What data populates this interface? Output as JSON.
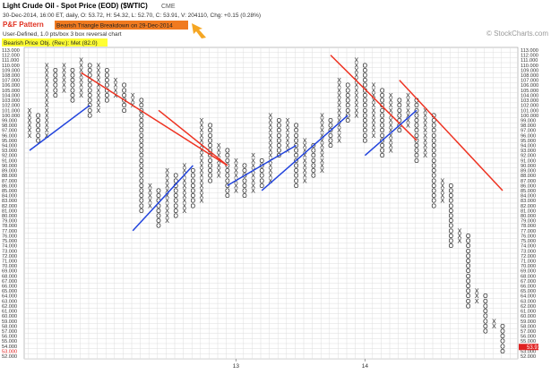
{
  "chart_data": {
    "type": "pnf",
    "title": "Light Crude Oil - Spot Price (EOD) ($WTIC)",
    "exchange": "CME",
    "subtitle": "30-Dec-2014, 16:00 ET, daily, O: 53.72, H: 54.32, L: 52.70, C: 53.91, V: 204110, Chg: +0.15 (0.28%)",
    "pattern_label": "P&F Pattern",
    "pattern": "Bearish Triangle Breakdown on 29-Dec-2014",
    "settings": "User-Defined, 1.0 pts/box 3 box reversal chart",
    "objective": "Bearish Price Obj. (Rev.): Met (82.0)",
    "watermark": "© StockCharts.com",
    "last_price": {
      "value": 53.91,
      "label": "53.91"
    },
    "ylim": [
      52,
      113
    ],
    "yticks": [
      {
        "value": 113,
        "label": "113.000"
      },
      {
        "value": 112,
        "label": "112.000"
      },
      {
        "value": 111,
        "label": "111.000"
      },
      {
        "value": 110,
        "label": "110.000"
      },
      {
        "value": 109,
        "label": "109.000"
      },
      {
        "value": 108,
        "label": "108.000"
      },
      {
        "value": 107,
        "label": "107.000"
      },
      {
        "value": 106,
        "label": "106.000"
      },
      {
        "value": 105,
        "label": "105.000"
      },
      {
        "value": 104,
        "label": "104.000"
      },
      {
        "value": 103,
        "label": "103.000"
      },
      {
        "value": 102,
        "label": "102.000"
      },
      {
        "value": 101,
        "label": "101.000"
      },
      {
        "value": 100,
        "label": "100.000"
      },
      {
        "value": 99,
        "label": "99.000"
      },
      {
        "value": 98,
        "label": "98.000"
      },
      {
        "value": 97,
        "label": "97.000"
      },
      {
        "value": 96,
        "label": "96.000"
      },
      {
        "value": 95,
        "label": "95.000"
      },
      {
        "value": 94,
        "label": "94.000"
      },
      {
        "value": 93,
        "label": "93.000"
      },
      {
        "value": 92,
        "label": "92.000"
      },
      {
        "value": 91,
        "label": "91.000"
      },
      {
        "value": 90,
        "label": "90.000"
      },
      {
        "value": 89,
        "label": "89.000"
      },
      {
        "value": 88,
        "label": "88.000"
      },
      {
        "value": 87,
        "label": "87.000"
      },
      {
        "value": 86,
        "label": "86.000"
      },
      {
        "value": 85,
        "label": "85.000"
      },
      {
        "value": 84,
        "label": "84.000"
      },
      {
        "value": 83,
        "label": "83.000"
      },
      {
        "value": 82,
        "label": "82.000"
      },
      {
        "value": 81,
        "label": "81.000"
      },
      {
        "value": 80,
        "label": "80.000"
      },
      {
        "value": 79,
        "label": "79.000"
      },
      {
        "value": 78,
        "label": "78.000"
      },
      {
        "value": 77,
        "label": "77.000"
      },
      {
        "value": 76,
        "label": "76.000"
      },
      {
        "value": 75,
        "label": "75.000"
      },
      {
        "value": 74,
        "label": "74.000"
      },
      {
        "value": 73,
        "label": "73.000"
      },
      {
        "value": 72,
        "label": "72.000"
      },
      {
        "value": 71,
        "label": "71.000"
      },
      {
        "value": 70,
        "label": "70.000"
      },
      {
        "value": 69,
        "label": "69.000"
      },
      {
        "value": 68,
        "label": "68.000"
      },
      {
        "value": 67,
        "label": "67.000"
      },
      {
        "value": 66,
        "label": "66.000"
      },
      {
        "value": 65,
        "label": "65.000"
      },
      {
        "value": 64,
        "label": "64.000"
      },
      {
        "value": 63,
        "label": "63.000"
      },
      {
        "value": 62,
        "label": "62.000"
      },
      {
        "value": 61,
        "label": "61.000"
      },
      {
        "value": 60,
        "label": "60.000"
      },
      {
        "value": 59,
        "label": "59.000"
      },
      {
        "value": 58,
        "label": "58.000"
      },
      {
        "value": 57,
        "label": "57.000"
      },
      {
        "value": 56,
        "label": "56.000"
      },
      {
        "value": 55,
        "label": "55.000"
      },
      {
        "value": 54,
        "label": "54.000"
      },
      {
        "value": 53,
        "label": "53.000"
      },
      {
        "value": 52,
        "label": "52.000"
      }
    ],
    "columns": [
      {
        "symbol": "X",
        "low": 96,
        "high": 101
      },
      {
        "symbol": "O",
        "low": 95,
        "high": 100
      },
      {
        "symbol": "X",
        "low": 96,
        "high": 110
      },
      {
        "symbol": "O",
        "low": 104,
        "high": 109
      },
      {
        "symbol": "X",
        "low": 105,
        "high": 110
      },
      {
        "symbol": "O",
        "low": 103,
        "high": 109
      },
      {
        "symbol": "X",
        "low": 104,
        "high": 111
      },
      {
        "symbol": "O",
        "low": 100,
        "high": 110
      },
      {
        "symbol": "X",
        "low": 101,
        "high": 110
      },
      {
        "symbol": "O",
        "low": 103,
        "high": 109
      },
      {
        "symbol": "X",
        "low": 104,
        "high": 107
      },
      {
        "symbol": "O",
        "low": 101,
        "high": 106
      },
      {
        "symbol": "X",
        "low": 102,
        "high": 104
      },
      {
        "symbol": "O",
        "low": 81,
        "high": 103
      },
      {
        "symbol": "X",
        "low": 82,
        "high": 86
      },
      {
        "symbol": "O",
        "low": 78,
        "high": 85
      },
      {
        "symbol": "X",
        "low": 79,
        "high": 89
      },
      {
        "symbol": "O",
        "low": 80,
        "high": 88
      },
      {
        "symbol": "X",
        "low": 81,
        "high": 90
      },
      {
        "symbol": "O",
        "low": 82,
        "high": 89
      },
      {
        "symbol": "X",
        "low": 83,
        "high": 99
      },
      {
        "symbol": "O",
        "low": 87,
        "high": 98
      },
      {
        "symbol": "X",
        "low": 88,
        "high": 94
      },
      {
        "symbol": "O",
        "low": 84,
        "high": 93
      },
      {
        "symbol": "X",
        "low": 85,
        "high": 91
      },
      {
        "symbol": "O",
        "low": 84,
        "high": 90
      },
      {
        "symbol": "X",
        "low": 85,
        "high": 92
      },
      {
        "symbol": "O",
        "low": 86,
        "high": 91
      },
      {
        "symbol": "X",
        "low": 87,
        "high": 100
      },
      {
        "symbol": "O",
        "low": 92,
        "high": 99
      },
      {
        "symbol": "X",
        "low": 93,
        "high": 99
      },
      {
        "symbol": "O",
        "low": 86,
        "high": 98
      },
      {
        "symbol": "X",
        "low": 87,
        "high": 95
      },
      {
        "symbol": "O",
        "low": 88,
        "high": 94
      },
      {
        "symbol": "X",
        "low": 89,
        "high": 100
      },
      {
        "symbol": "O",
        "low": 94,
        "high": 99
      },
      {
        "symbol": "X",
        "low": 95,
        "high": 107
      },
      {
        "symbol": "O",
        "low": 99,
        "high": 106
      },
      {
        "symbol": "X",
        "low": 100,
        "high": 111
      },
      {
        "symbol": "O",
        "low": 95,
        "high": 110
      },
      {
        "symbol": "X",
        "low": 96,
        "high": 106
      },
      {
        "symbol": "O",
        "low": 92,
        "high": 105
      },
      {
        "symbol": "X",
        "low": 93,
        "high": 104
      },
      {
        "symbol": "O",
        "low": 97,
        "high": 103
      },
      {
        "symbol": "X",
        "low": 98,
        "high": 104
      },
      {
        "symbol": "O",
        "low": 91,
        "high": 103
      },
      {
        "symbol": "X",
        "low": 92,
        "high": 101
      },
      {
        "symbol": "O",
        "low": 82,
        "high": 100
      },
      {
        "symbol": "X",
        "low": 83,
        "high": 87
      },
      {
        "symbol": "O",
        "low": 74,
        "high": 86
      },
      {
        "symbol": "X",
        "low": 75,
        "high": 77
      },
      {
        "symbol": "O",
        "low": 62,
        "high": 76
      },
      {
        "symbol": "X",
        "low": 63,
        "high": 65
      },
      {
        "symbol": "O",
        "low": 57,
        "high": 64
      },
      {
        "symbol": "X",
        "low": 58,
        "high": 59
      },
      {
        "symbol": "O",
        "low": 53,
        "high": 58
      }
    ],
    "x_labels": [
      {
        "column": 24,
        "label": "13"
      },
      {
        "column": 39,
        "label": "14"
      }
    ],
    "trendlines": [
      {
        "color": "#ee3322",
        "from": [
          6,
          108.5
        ],
        "to": [
          23,
          90
        ]
      },
      {
        "color": "#ee3322",
        "from": [
          15,
          101
        ],
        "to": [
          23,
          90
        ]
      },
      {
        "color": "#ee3322",
        "from": [
          35,
          112
        ],
        "to": [
          45,
          95
        ]
      },
      {
        "color": "#ee3322",
        "from": [
          43,
          107
        ],
        "to": [
          55,
          85
        ]
      },
      {
        "color": "#2244dd",
        "from": [
          0,
          93
        ],
        "to": [
          7,
          102
        ]
      },
      {
        "color": "#2244dd",
        "from": [
          12,
          77
        ],
        "to": [
          19,
          90
        ]
      },
      {
        "color": "#2244dd",
        "from": [
          23,
          86
        ],
        "to": [
          31,
          94
        ]
      },
      {
        "color": "#2244dd",
        "from": [
          27,
          85
        ],
        "to": [
          37,
          100
        ]
      },
      {
        "color": "#2244dd",
        "from": [
          39,
          92
        ],
        "to": [
          45,
          101
        ]
      }
    ],
    "colors": {
      "X": "#222222",
      "O": "#222222"
    }
  }
}
